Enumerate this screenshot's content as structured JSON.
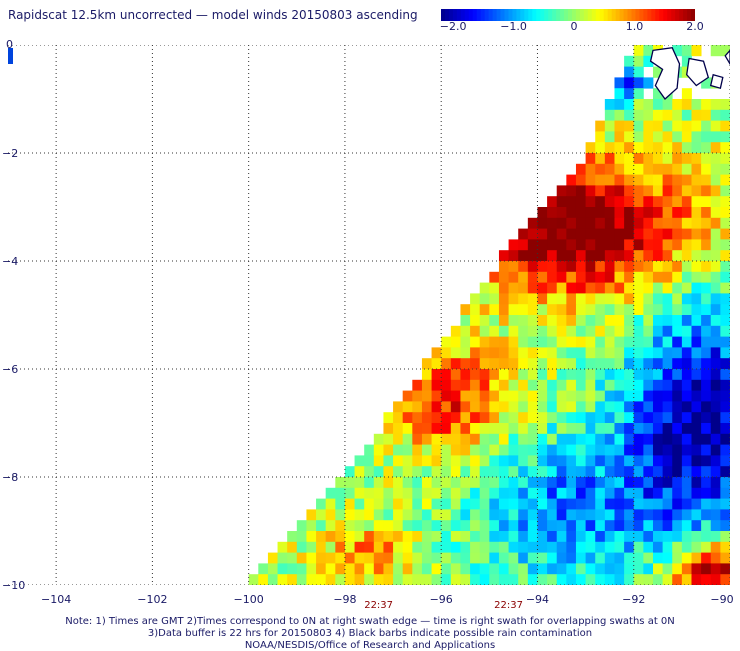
{
  "title": "Rapidscat 12.5km uncorrected — model winds 20150803 ascending",
  "colorbar": {
    "labels": [
      "−2.0",
      "−1.0",
      "0",
      "1.0",
      "2.0"
    ],
    "label_values": [
      -2.0,
      -1.0,
      0,
      1.0,
      2.0
    ],
    "range": [
      -2.2,
      2.0
    ],
    "colors": [
      "#00008b",
      "#0000ff",
      "#0080ff",
      "#00ffff",
      "#80ff80",
      "#ffff00",
      "#ff8000",
      "#ff0000",
      "#8b0000"
    ]
  },
  "map": {
    "lon_range": [
      -105,
      -90
    ],
    "lat_range": [
      -10,
      0
    ],
    "lon_ticks": [
      "−104",
      "−102",
      "−100",
      "−98",
      "−96",
      "−94",
      "−92",
      "−90"
    ],
    "lon_tick_values": [
      -104,
      -102,
      -100,
      -98,
      -96,
      -94,
      -92,
      -90
    ],
    "lat_ticks": [
      "0",
      "−2",
      "−4",
      "−6",
      "−8",
      "−10"
    ],
    "lat_tick_values": [
      0,
      -2,
      -4,
      -6,
      -8,
      -10
    ],
    "grid": "dotted",
    "swath_left_edge": [
      [
        -92.0,
        0
      ],
      [
        -93.0,
        -2
      ],
      [
        -94.8,
        -4
      ],
      [
        -96.0,
        -5.5
      ],
      [
        -97.2,
        -7
      ],
      [
        -98.5,
        -8.5
      ],
      [
        -100.0,
        -10
      ]
    ],
    "time_labels": [
      "22:37",
      "22:37"
    ],
    "time_label_lons": [
      -97.3,
      -94.6
    ],
    "land_color": "#ffffff",
    "coast_color": "#00004a"
  },
  "notes": [
    "Note: 1) Times are GMT 2)Times correspond to 0N at right swath edge — time is right swath for overlapping swaths at 0N",
    "3)Data buffer is 22 hrs for 20150803 4) Black barbs indicate possible rain contamination",
    "NOAA/NESDIS/Office of Research and Applications"
  ]
}
